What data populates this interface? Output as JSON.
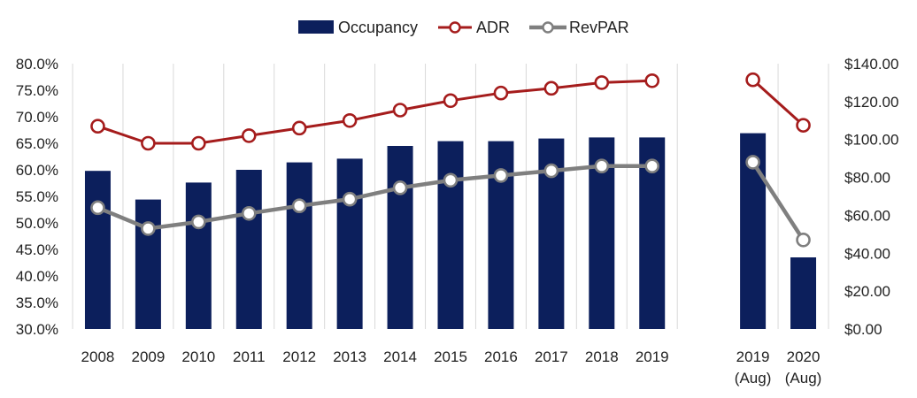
{
  "chart_data": {
    "type": "bar",
    "title": "",
    "xlabel": "",
    "ylabel": "",
    "categories": [
      {
        "line1": "2008",
        "line2": ""
      },
      {
        "line1": "2009",
        "line2": ""
      },
      {
        "line1": "2010",
        "line2": ""
      },
      {
        "line1": "2011",
        "line2": ""
      },
      {
        "line1": "2012",
        "line2": ""
      },
      {
        "line1": "2013",
        "line2": ""
      },
      {
        "line1": "2014",
        "line2": ""
      },
      {
        "line1": "2015",
        "line2": ""
      },
      {
        "line1": "2016",
        "line2": ""
      },
      {
        "line1": "2017",
        "line2": ""
      },
      {
        "line1": "2018",
        "line2": ""
      },
      {
        "line1": "2019",
        "line2": ""
      },
      {
        "line1": "",
        "line2": ""
      },
      {
        "line1": "2019",
        "line2": "(Aug)"
      },
      {
        "line1": "2020",
        "line2": "(Aug)"
      }
    ],
    "series": [
      {
        "name": "Occupancy",
        "type": "bar",
        "axis": "left",
        "color": "#0c1f5c",
        "values": [
          59.8,
          54.4,
          57.6,
          60.0,
          61.4,
          62.1,
          64.5,
          65.4,
          65.4,
          65.9,
          66.1,
          66.1,
          null,
          66.9,
          43.5
        ]
      },
      {
        "name": "ADR",
        "type": "line",
        "axis": "right",
        "color": "#a51c1c",
        "values": [
          107.0,
          98.0,
          98.0,
          102.0,
          106.0,
          110.0,
          115.5,
          120.5,
          124.5,
          127.0,
          130.0,
          131.0,
          null,
          131.5,
          107.5
        ]
      },
      {
        "name": "RevPAR",
        "type": "line",
        "axis": "right",
        "color": "#7f7f7f",
        "values": [
          64.0,
          53.0,
          56.5,
          61.0,
          65.0,
          68.5,
          74.5,
          78.5,
          81.0,
          83.5,
          86.0,
          86.0,
          null,
          88.0,
          47.0
        ]
      }
    ],
    "y_left": {
      "min": 30,
      "max": 80,
      "step": 5,
      "tick_labels": [
        "30.0%",
        "35.0%",
        "40.0%",
        "45.0%",
        "50.0%",
        "55.0%",
        "60.0%",
        "65.0%",
        "70.0%",
        "75.0%",
        "80.0%"
      ]
    },
    "y_right": {
      "min": 0,
      "max": 140,
      "step": 20,
      "tick_labels": [
        "$0.00",
        "$20.00",
        "$40.00",
        "$60.00",
        "$80.00",
        "$100.00",
        "$120.00",
        "$140.00"
      ]
    },
    "grid": "vertical",
    "legend_position": "top-center",
    "legend": [
      {
        "name": "Occupancy",
        "marker": "bar"
      },
      {
        "name": "ADR",
        "marker": "line"
      },
      {
        "name": "RevPAR",
        "marker": "line"
      }
    ]
  }
}
